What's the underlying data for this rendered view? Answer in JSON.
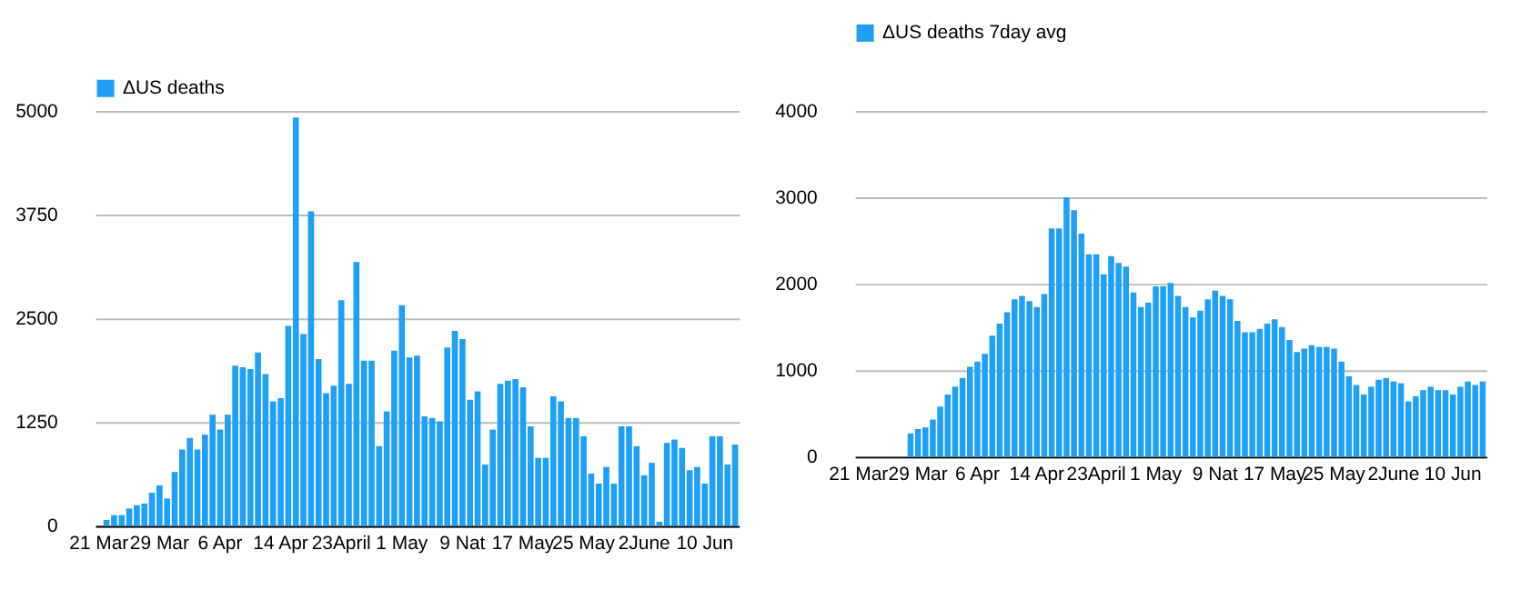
{
  "chart_data": [
    {
      "type": "bar",
      "categories": [
        "21 Mar",
        null,
        null,
        null,
        null,
        null,
        null,
        null,
        "29 Mar",
        null,
        null,
        null,
        null,
        null,
        null,
        null,
        "6 Apr",
        null,
        null,
        null,
        null,
        null,
        null,
        null,
        "14 Apr",
        null,
        null,
        null,
        null,
        null,
        null,
        null,
        "23April",
        null,
        null,
        null,
        null,
        null,
        null,
        null,
        "1 May",
        null,
        null,
        null,
        null,
        null,
        null,
        null,
        "9 Nat",
        null,
        null,
        null,
        null,
        null,
        null,
        null,
        "17 May",
        null,
        null,
        null,
        null,
        null,
        null,
        null,
        "25 May",
        null,
        null,
        null,
        null,
        null,
        null,
        null,
        "2June",
        null,
        null,
        null,
        null,
        null,
        null,
        null,
        "10 Jun",
        null,
        null,
        null,
        null
      ],
      "series": [
        {
          "name": "ΔUS deaths",
          "color": "#1f9ff5",
          "values": [
            0,
            70,
            130,
            130,
            210,
            250,
            270,
            400,
            490,
            330,
            650,
            920,
            1060,
            920,
            1100,
            1340,
            1160,
            1340,
            1930,
            1910,
            1890,
            2090,
            1830,
            1500,
            1540,
            2410,
            4920,
            2310,
            3790,
            2010,
            1600,
            1690,
            2720,
            1710,
            3180,
            1990,
            1990,
            960,
            1380,
            2110,
            2660,
            2030,
            2050,
            1320,
            1300,
            1260,
            2150,
            2350,
            2250,
            1520,
            1620,
            740,
            1160,
            1710,
            1750,
            1770,
            1670,
            1200,
            820,
            820,
            1560,
            1500,
            1300,
            1300,
            1080,
            630,
            510,
            710,
            510,
            1200,
            1200,
            960,
            610,
            760,
            50,
            1000,
            1040,
            940,
            670,
            710,
            510,
            1080,
            1080,
            740,
            980
          ]
        }
      ],
      "ylim": [
        0,
        5000
      ],
      "yticks": [
        0,
        1250,
        2500,
        3750,
        5000
      ],
      "grid": "y",
      "legend": "top"
    },
    {
      "type": "bar",
      "categories": [
        "21 Mar",
        null,
        null,
        null,
        null,
        null,
        null,
        null,
        "29 Mar",
        null,
        null,
        null,
        null,
        null,
        null,
        null,
        "6 Apr",
        null,
        null,
        null,
        null,
        null,
        null,
        null,
        "14 Apr",
        null,
        null,
        null,
        null,
        null,
        null,
        null,
        "23April",
        null,
        null,
        null,
        null,
        null,
        null,
        null,
        "1 May",
        null,
        null,
        null,
        null,
        null,
        null,
        null,
        "9 Nat",
        null,
        null,
        null,
        null,
        null,
        null,
        null,
        "17 May",
        null,
        null,
        null,
        null,
        null,
        null,
        null,
        "25 May",
        null,
        null,
        null,
        null,
        null,
        null,
        null,
        "2June",
        null,
        null,
        null,
        null,
        null,
        null,
        null,
        "10 Jun",
        null,
        null,
        null,
        null
      ],
      "series": [
        {
          "name": "ΔUS deaths 7day avg",
          "color": "#1f9ff5",
          "values": [
            null,
            null,
            null,
            null,
            null,
            null,
            null,
            270,
            320,
            340,
            430,
            580,
            720,
            810,
            910,
            1040,
            1100,
            1190,
            1400,
            1540,
            1670,
            1820,
            1860,
            1800,
            1730,
            1880,
            2640,
            2640,
            3000,
            2850,
            2580,
            2340,
            2340,
            2110,
            2320,
            2240,
            2200,
            1900,
            1730,
            1780,
            1970,
            1970,
            2010,
            1860,
            1730,
            1610,
            1690,
            1820,
            1920,
            1860,
            1820,
            1570,
            1440,
            1440,
            1480,
            1540,
            1590,
            1500,
            1350,
            1210,
            1250,
            1290,
            1270,
            1270,
            1250,
            1100,
            930,
            830,
            720,
            810,
            890,
            910,
            870,
            850,
            640,
            700,
            770,
            810,
            770,
            770,
            720,
            810,
            870,
            830,
            870
          ]
        }
      ],
      "ylim": [
        0,
        4000
      ],
      "yticks": [
        0,
        1000,
        2000,
        3000,
        4000
      ],
      "grid": "y",
      "legend": "top"
    }
  ]
}
